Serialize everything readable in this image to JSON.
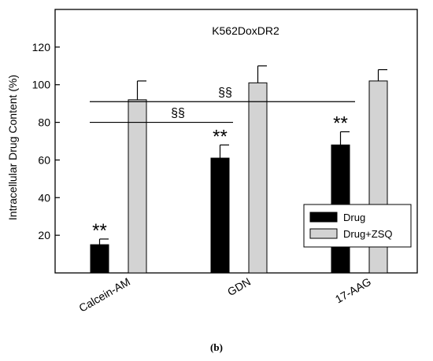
{
  "panel_label": "(b)",
  "chart_data": {
    "type": "bar",
    "title": "K562DoxDR2",
    "xlabel": "",
    "ylabel": "Intracellular Drug Content (%)",
    "ylim": [
      0,
      140
    ],
    "yticks": [
      20,
      40,
      60,
      80,
      100,
      120
    ],
    "grid": false,
    "categories": [
      "Calcein-AM",
      "GDN",
      "17-AAG"
    ],
    "series": [
      {
        "name": "Drug",
        "color": "#000000",
        "values": [
          15,
          61,
          68
        ],
        "errors": [
          3,
          7,
          7
        ]
      },
      {
        "name": "Drug+ZSQ",
        "color": "#d3d3d3",
        "values": [
          92,
          101,
          102
        ],
        "errors": [
          10,
          9,
          6
        ]
      }
    ],
    "significance": [
      {
        "label": "**",
        "category": 0,
        "series": 0
      },
      {
        "label": "**",
        "category": 1,
        "series": 0
      },
      {
        "label": "**",
        "category": 2,
        "series": 0
      }
    ],
    "brackets": [
      {
        "label": "§§",
        "y": 91,
        "from_category": 0,
        "to_category": 2
      },
      {
        "label": "§§",
        "y": 80,
        "from_category": 0,
        "to_category": 1
      }
    ],
    "legend_position": "bottom-right"
  }
}
